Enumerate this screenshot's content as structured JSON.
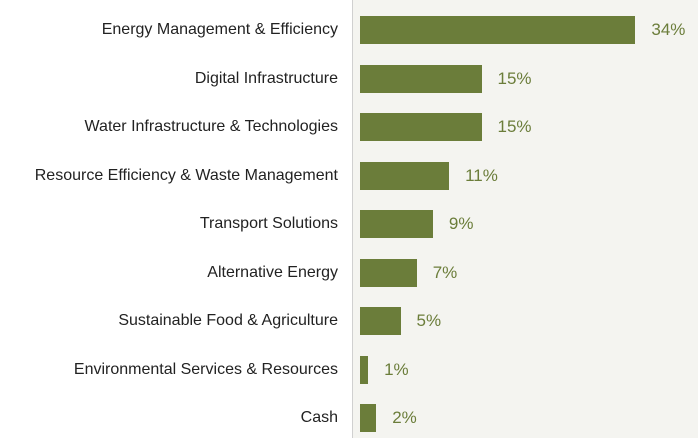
{
  "chart_data": {
    "type": "bar",
    "orientation": "horizontal",
    "categories": [
      "Energy Management & Efficiency",
      "Digital Infrastructure",
      "Water Infrastructure & Technologies",
      "Resource Efficiency & Waste Management",
      "Transport Solutions",
      "Alternative Energy",
      "Sustainable Food & Agriculture",
      "Environmental Services & Resources",
      "Cash"
    ],
    "values": [
      34,
      15,
      15,
      11,
      9,
      7,
      5,
      1,
      2
    ],
    "value_labels": [
      "34%",
      "15%",
      "15%",
      "11%",
      "9%",
      "7%",
      "5%",
      "1%",
      "2%"
    ],
    "color": "#6b7d3a"
  }
}
